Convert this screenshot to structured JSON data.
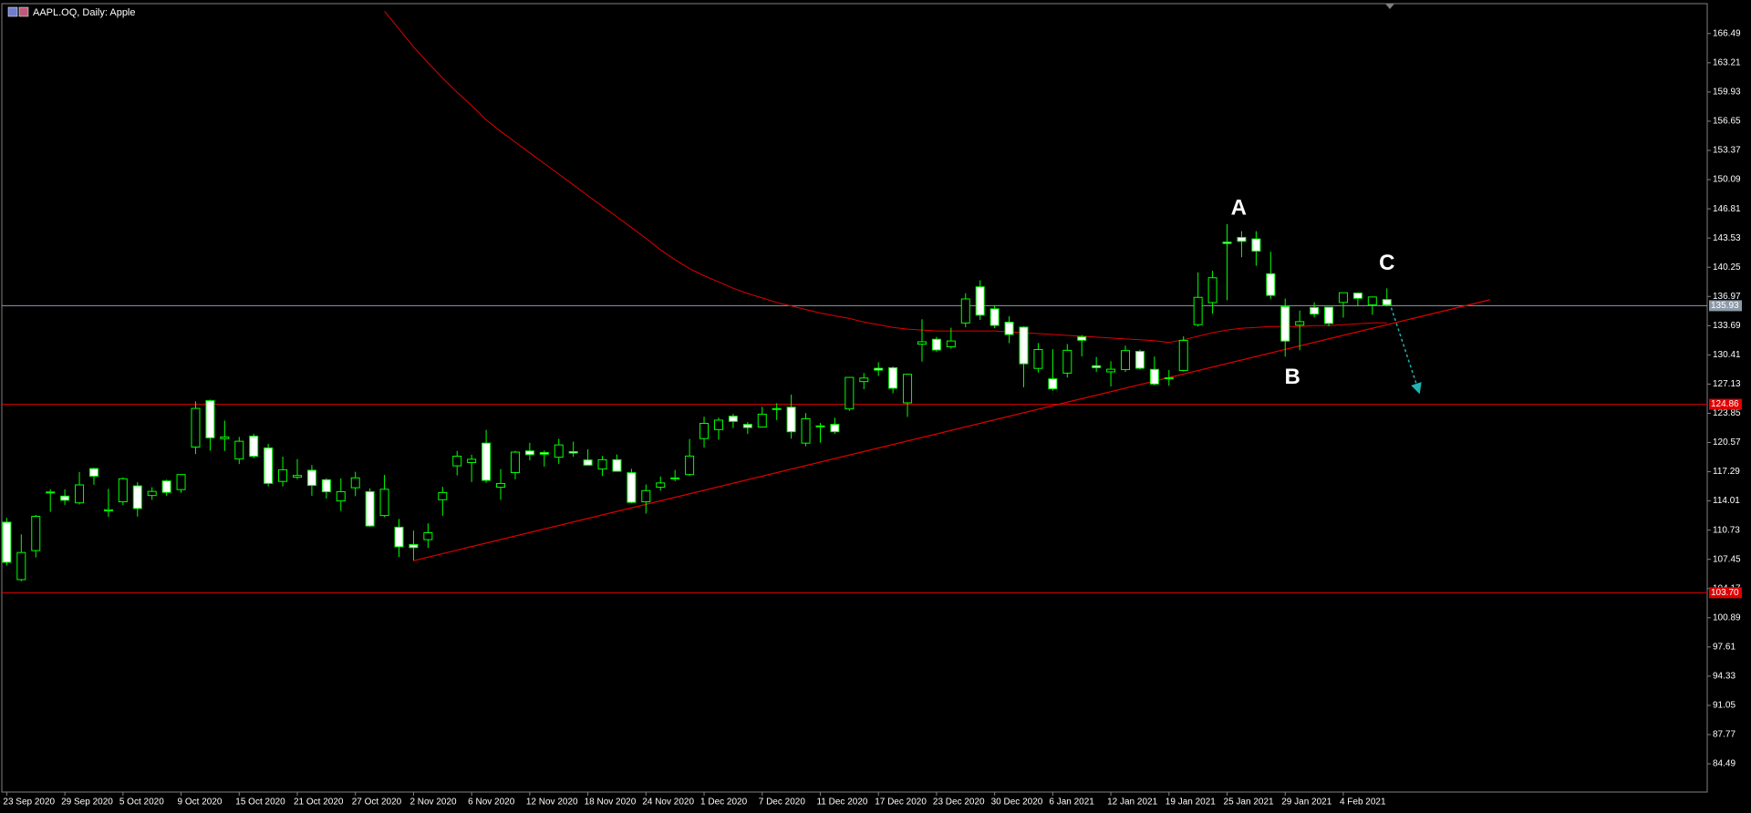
{
  "chart_data": {
    "type": "candlestick",
    "title": "AAPL.OQ, Daily: Apple",
    "categories": [
      "23 Sep 2020",
      null,
      null,
      null,
      "29 Sep 2020",
      null,
      null,
      null,
      "5 Oct 2020",
      null,
      null,
      null,
      "9 Oct 2020",
      null,
      null,
      null,
      "15 Oct 2020",
      null,
      null,
      null,
      "21 Oct 2020",
      null,
      null,
      null,
      "27 Oct 2020",
      null,
      null,
      null,
      "2 Nov 2020",
      null,
      null,
      null,
      "6 Nov 2020",
      null,
      null,
      null,
      "12 Nov 2020",
      null,
      null,
      null,
      "18 Nov 2020",
      null,
      null,
      null,
      "24 Nov 2020",
      null,
      null,
      null,
      "1 Dec 2020",
      null,
      null,
      null,
      "7 Dec 2020",
      null,
      null,
      null,
      "11 Dec 2020",
      null,
      null,
      null,
      "17 Dec 2020",
      null,
      null,
      null,
      "23 Dec 2020",
      null,
      null,
      null,
      "30 Dec 2020",
      null,
      null,
      null,
      "6 Jan 2021",
      null,
      null,
      null,
      "12 Jan 2021",
      null,
      null,
      null,
      "19 Jan 2021",
      null,
      null,
      null,
      "25 Jan 2021",
      null,
      null,
      null,
      "29 Jan 2021",
      null,
      null,
      null,
      "4 Feb 2021",
      null,
      null,
      null
    ],
    "open": [
      111.62,
      105.17,
      108.43,
      115.01,
      114.55,
      113.79,
      117.64,
      112.89,
      113.91,
      115.7,
      114.62,
      116.25,
      115.28,
      120.06,
      125.27,
      121.0,
      118.72,
      121.28,
      119.96,
      116.2,
      116.67,
      117.45,
      116.39,
      114.01,
      115.49,
      115.05,
      112.37,
      111.06,
      109.11,
      109.66,
      114.14,
      117.95,
      118.32,
      120.5,
      115.55,
      117.19,
      119.62,
      119.44,
      118.92,
      119.55,
      118.61,
      117.59,
      118.64,
      117.18,
      113.91,
      115.55,
      116.57,
      116.97,
      121.01,
      122.02,
      123.52,
      122.6,
      122.31,
      124.37,
      124.53,
      120.5,
      122.43,
      122.6,
      124.34,
      127.41,
      128.9,
      128.96,
      125.02,
      131.61,
      132.16,
      131.32,
      133.99,
      138.05,
      135.58,
      134.08,
      133.52,
      128.89,
      127.72,
      128.36,
      132.43,
      129.19,
      128.5,
      128.76,
      130.8,
      128.78,
      127.78,
      128.66,
      133.8,
      136.28,
      143.07,
      143.6,
      143.43,
      139.52,
      135.83,
      133.75,
      135.73,
      135.76,
      136.3,
      137.35,
      136.03,
      136.62
    ],
    "high": [
      112.11,
      110.25,
      112.44,
      115.32,
      115.31,
      117.26,
      117.72,
      115.37,
      116.65,
      116.12,
      115.55,
      116.4,
      117.0,
      125.18,
      125.39,
      123.03,
      121.2,
      121.55,
      120.42,
      118.98,
      118.71,
      118.04,
      116.55,
      116.55,
      117.28,
      115.43,
      116.93,
      111.99,
      110.68,
      111.49,
      115.59,
      119.62,
      119.2,
      121.99,
      117.59,
      119.63,
      120.53,
      119.67,
      120.99,
      120.67,
      119.82,
      119.06,
      119.23,
      117.62,
      115.85,
      116.75,
      117.49,
      120.97,
      123.47,
      123.37,
      123.78,
      122.86,
      124.57,
      124.98,
      125.95,
      123.87,
      122.76,
      123.35,
      127.9,
      128.37,
      129.58,
      129.1,
      128.31,
      134.41,
      132.43,
      133.46,
      137.34,
      138.79,
      135.99,
      134.74,
      133.61,
      131.74,
      131.05,
      131.63,
      132.63,
      130.17,
      129.69,
      131.45,
      131.0,
      130.22,
      128.71,
      132.49,
      139.67,
      139.85,
      145.09,
      144.3,
      144.3,
      141.99,
      136.74,
      135.38,
      136.31,
      135.77,
      137.4,
      137.42,
      136.96,
      137.88
    ],
    "low": [
      106.77,
      105.0,
      107.67,
      112.78,
      113.57,
      113.62,
      115.83,
      112.22,
      113.55,
      112.25,
      114.13,
      114.59,
      114.92,
      119.28,
      119.65,
      119.62,
      118.15,
      118.81,
      115.66,
      115.63,
      116.45,
      114.59,
      114.28,
      112.88,
      114.54,
      111.1,
      112.2,
      107.72,
      107.32,
      108.73,
      112.35,
      116.87,
      116.13,
      116.05,
      114.13,
      116.44,
      118.57,
      117.87,
      118.15,
      118.96,
      118.0,
      116.81,
      117.32,
      113.75,
      112.59,
      115.17,
      116.22,
      116.81,
      120.01,
      120.89,
      122.21,
      121.52,
      122.25,
      123.09,
      121.0,
      120.15,
      120.55,
      121.54,
      124.13,
      126.56,
      128.04,
      126.12,
      123.45,
      129.65,
      130.78,
      131.1,
      133.51,
      134.34,
      133.4,
      131.72,
      126.76,
      128.43,
      126.38,
      127.86,
      130.23,
      128.5,
      126.86,
      128.49,
      128.76,
      127.0,
      126.94,
      128.55,
      133.59,
      135.02,
      136.54,
      141.37,
      140.41,
      136.7,
      130.21,
      130.93,
      134.61,
      133.61,
      134.59,
      135.86,
      134.92,
      135.85
    ],
    "close": [
      107.12,
      108.22,
      112.28,
      114.96,
      114.09,
      115.81,
      116.79,
      113.02,
      116.5,
      113.16,
      115.08,
      114.97,
      116.97,
      124.4,
      121.1,
      121.19,
      120.71,
      119.02,
      115.98,
      117.51,
      116.87,
      115.75,
      115.04,
      115.05,
      116.6,
      111.2,
      115.32,
      108.86,
      108.77,
      110.44,
      114.95,
      119.03,
      118.69,
      116.32,
      115.97,
      119.49,
      119.21,
      119.26,
      120.3,
      119.39,
      118.03,
      118.64,
      117.34,
      113.85,
      115.17,
      116.03,
      116.59,
      119.05,
      122.72,
      123.08,
      122.94,
      122.25,
      123.75,
      124.38,
      121.78,
      123.24,
      122.41,
      121.78,
      127.88,
      127.81,
      128.7,
      126.66,
      128.23,
      131.88,
      130.96,
      131.97,
      136.69,
      134.87,
      133.72,
      132.69,
      129.41,
      131.01,
      126.6,
      130.92,
      132.05,
      128.98,
      128.8,
      130.89,
      128.91,
      127.14,
      127.83,
      132.03,
      136.87,
      139.07,
      142.92,
      143.16,
      142.06,
      137.09,
      131.96,
      134.14,
      134.99,
      133.94,
      137.39,
      136.76,
      136.91,
      136.01
    ],
    "up_color": "#00ff00",
    "bull_fill": "#000000",
    "bear_fill": "#ffffff",
    "ma": {
      "color": "#e00000",
      "values": [
        null,
        null,
        null,
        null,
        null,
        null,
        null,
        null,
        null,
        null,
        null,
        null,
        null,
        null,
        null,
        null,
        null,
        null,
        null,
        null,
        null,
        null,
        null,
        null,
        null,
        null,
        169.0,
        167.0,
        165.0,
        163.2,
        161.5,
        159.9,
        158.4,
        156.8,
        155.5,
        154.3,
        153.1,
        151.9,
        150.7,
        149.5,
        148.3,
        147.1,
        145.9,
        144.7,
        143.5,
        142.2,
        141.1,
        140.1,
        139.3,
        138.6,
        137.9,
        137.3,
        136.8,
        136.3,
        135.9,
        135.5,
        135.1,
        134.8,
        134.5,
        134.1,
        133.8,
        133.5,
        133.3,
        133.2,
        133.1,
        133.1,
        133.1,
        133.1,
        133.1,
        133.0,
        132.9,
        132.8,
        132.7,
        132.6,
        132.5,
        132.4,
        132.3,
        132.2,
        132.1,
        132.0,
        131.8,
        132.1,
        132.5,
        132.9,
        133.2,
        133.4,
        133.5,
        133.6,
        133.6,
        133.6,
        133.7,
        133.7,
        133.8,
        133.9,
        134.0,
        134.0
      ]
    },
    "trendline": {
      "color": "#e00000",
      "x": [
        28,
        102.1
      ],
      "y": [
        107.3,
        136.6
      ]
    },
    "arrow": {
      "color": "#1fb5b5",
      "x": [
        95.3,
        97.2
      ],
      "y": [
        135.7,
        126.3
      ]
    },
    "hlines": [
      {
        "value": 135.93,
        "label": "135.93",
        "color": "#8c9aa8"
      },
      {
        "value": 124.86,
        "label": "124.86",
        "color": "#e00000"
      },
      {
        "value": 103.7,
        "label": "103.70",
        "color": "#e00000"
      }
    ],
    "annotations": [
      {
        "text": "A",
        "x": 84.8,
        "y": 146.8
      },
      {
        "text": "B",
        "x": 88.5,
        "y": 127.8
      },
      {
        "text": "C",
        "x": 95.0,
        "y": 140.6
      }
    ],
    "ylim": [
      81.32,
      169.85
    ],
    "yticks": [
      166.49,
      163.21,
      159.93,
      156.65,
      153.37,
      150.09,
      146.81,
      143.53,
      140.25,
      136.97,
      133.69,
      130.41,
      127.13,
      123.85,
      120.57,
      117.29,
      114.01,
      110.73,
      107.45,
      104.17,
      100.89,
      97.61,
      94.33,
      91.05,
      87.77,
      84.49
    ]
  }
}
